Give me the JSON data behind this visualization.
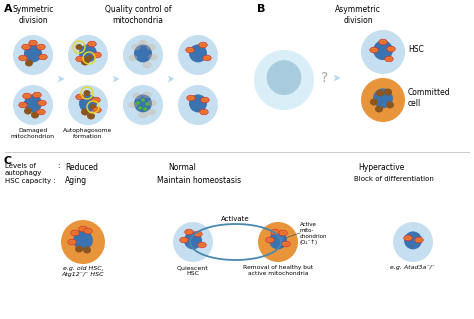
{
  "bg_color": "#ffffff",
  "cell_light_blue": "#c5dff0",
  "cell_blue_nucleus": "#3b72b0",
  "cell_orange": "#e8943a",
  "cell_very_light_blue": "#daeef8",
  "cell_pale_blue_nucleus": "#a8ccde",
  "mito_red": "#d63030",
  "mito_orange": "#e87c30",
  "mito_brown": "#8b5520",
  "mito_faded": "#d0b090",
  "yellow_ring": "#e8d820",
  "green_dot": "#50b830",
  "arrow_fill": "#b8d8ee",
  "arrow_dark": "#4888b0",
  "text_dark": "#222222",
  "label_A": "A",
  "label_B": "B",
  "label_C": "C",
  "title_sym": "Symmetric\ndivision",
  "title_qc": "Quality control of\nmitochondria",
  "title_asym": "Asymmetric\ndivision",
  "label_hsc": "HSC",
  "label_committed": "Committed\ncell",
  "label_damaged": "Damaged\nmitochondrion",
  "label_autophagosome": "Autophagosome\nformation",
  "label_levels": "Levels of\nautophagy",
  "label_hsc_cap": "HSC capacity :",
  "label_colon": ":",
  "label_reduced": "Reduced",
  "label_normal": "Normal",
  "label_hyperactive": "Hyperactive",
  "label_aging": "Aging",
  "label_homeostasis": "Maintain homeostasis",
  "label_block": "Block of differentiation",
  "label_activate": "Activate",
  "label_quiescent": "Quiescent\nHSC",
  "label_removal": "Removal of healthy but\nactive mitochondria",
  "label_active_mito": "Active\nmito-\nchondrion\n(O₂⁻↑)",
  "label_eg_old": "e.g. old HSC,\nAtg12⁻/⁻ HSC",
  "label_eg_atad": "e.g. Atad3a⁻/⁻",
  "qmark": "?"
}
